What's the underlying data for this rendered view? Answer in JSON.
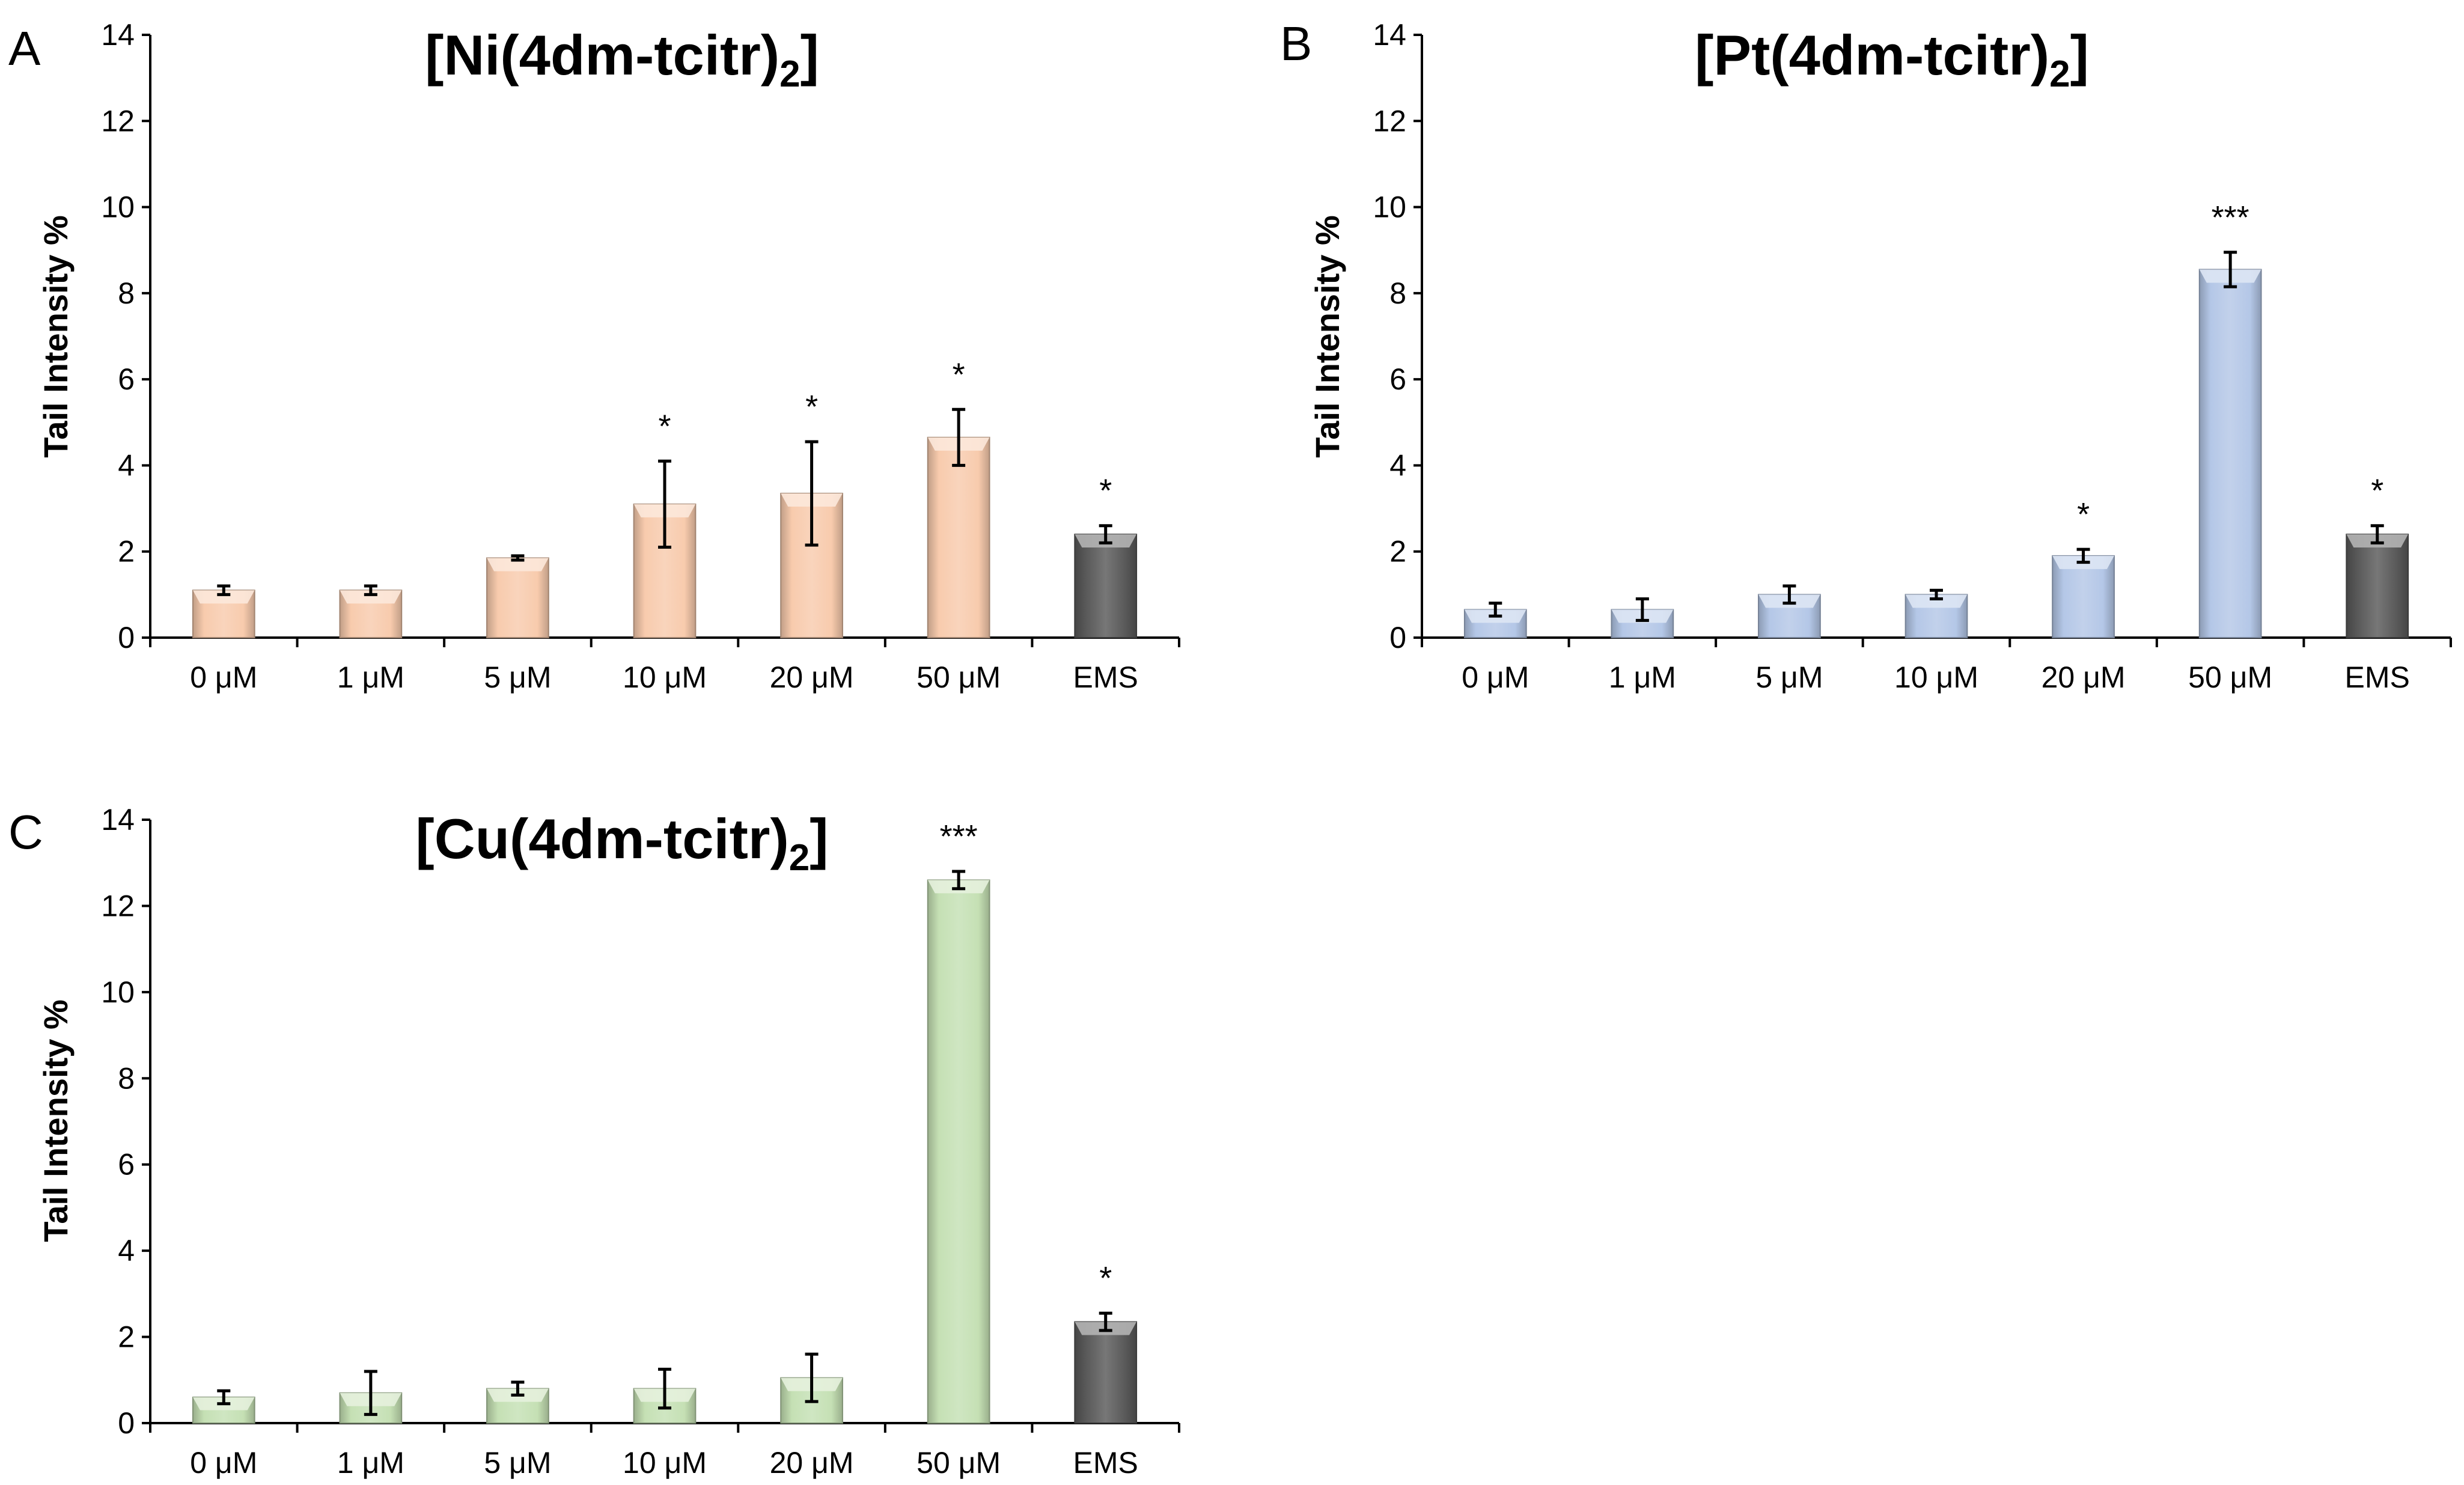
{
  "chart_data": [
    {
      "type": "bar",
      "panel": "A",
      "title": "[Ni(4dm-tcitr)2]",
      "title_main": "[Ni(4dm-tcitr)",
      "title_sub": "2",
      "title_end": "]",
      "ylabel": "Tail Intensity %",
      "xlabel": "",
      "ylim": [
        0,
        14
      ],
      "yticks": [
        "0",
        "2",
        "4",
        "6",
        "8",
        "10",
        "12",
        "14"
      ],
      "categories": [
        "0 μM",
        "1 μM",
        "5 μM",
        "10 μM",
        "20 μM",
        "50 μM",
        "EMS"
      ],
      "values": [
        1.1,
        1.1,
        1.85,
        3.1,
        3.35,
        4.65,
        2.4
      ],
      "errors": [
        0.1,
        0.1,
        0.05,
        1.0,
        1.2,
        0.65,
        0.2
      ],
      "significance": [
        "",
        "",
        "",
        "*",
        "*",
        "*",
        "*"
      ],
      "colors": [
        "#F8CBAD",
        "#F8CBAD",
        "#F8CBAD",
        "#F8CBAD",
        "#F8CBAD",
        "#F8CBAD",
        "#595959"
      ]
    },
    {
      "type": "bar",
      "panel": "B",
      "title": "[Pt(4dm-tcitr)2]",
      "title_main": "[Pt(4dm-tcitr)",
      "title_sub": "2",
      "title_end": "]",
      "ylabel": "Tail Intensity %",
      "xlabel": "",
      "ylim": [
        0,
        14
      ],
      "yticks": [
        "0",
        "2",
        "4",
        "6",
        "8",
        "10",
        "12",
        "14"
      ],
      "categories": [
        "0 μM",
        "1 μM",
        "5 μM",
        "10 μM",
        "20 μM",
        "50 μM",
        "EMS"
      ],
      "values": [
        0.65,
        0.65,
        1.0,
        1.0,
        1.9,
        8.55,
        2.4
      ],
      "errors": [
        0.15,
        0.25,
        0.2,
        0.1,
        0.15,
        0.4,
        0.2
      ],
      "significance": [
        "",
        "",
        "",
        "",
        "*",
        "***",
        "*"
      ],
      "colors": [
        "#B4C7E7",
        "#B4C7E7",
        "#B4C7E7",
        "#B4C7E7",
        "#B4C7E7",
        "#B4C7E7",
        "#595959"
      ]
    },
    {
      "type": "bar",
      "panel": "C",
      "title": "[Cu(4dm-tcitr)2]",
      "title_main": "[Cu(4dm-tcitr)",
      "title_sub": "2",
      "title_end": "]",
      "ylabel": "Tail Intensity %",
      "xlabel": "",
      "ylim": [
        0,
        14
      ],
      "yticks": [
        "0",
        "2",
        "4",
        "6",
        "8",
        "10",
        "12",
        "14"
      ],
      "categories": [
        "0 μM",
        "1 μM",
        "5 μM",
        "10 μM",
        "20 μM",
        "50 μM",
        "EMS"
      ],
      "values": [
        0.6,
        0.7,
        0.8,
        0.8,
        1.05,
        12.6,
        2.35
      ],
      "errors": [
        0.15,
        0.5,
        0.15,
        0.45,
        0.55,
        0.2,
        0.2
      ],
      "significance": [
        "",
        "",
        "",
        "",
        "",
        "***",
        "*"
      ],
      "colors": [
        "#C5E0B4",
        "#C5E0B4",
        "#C5E0B4",
        "#C5E0B4",
        "#C5E0B4",
        "#C5E0B4",
        "#595959"
      ]
    }
  ]
}
